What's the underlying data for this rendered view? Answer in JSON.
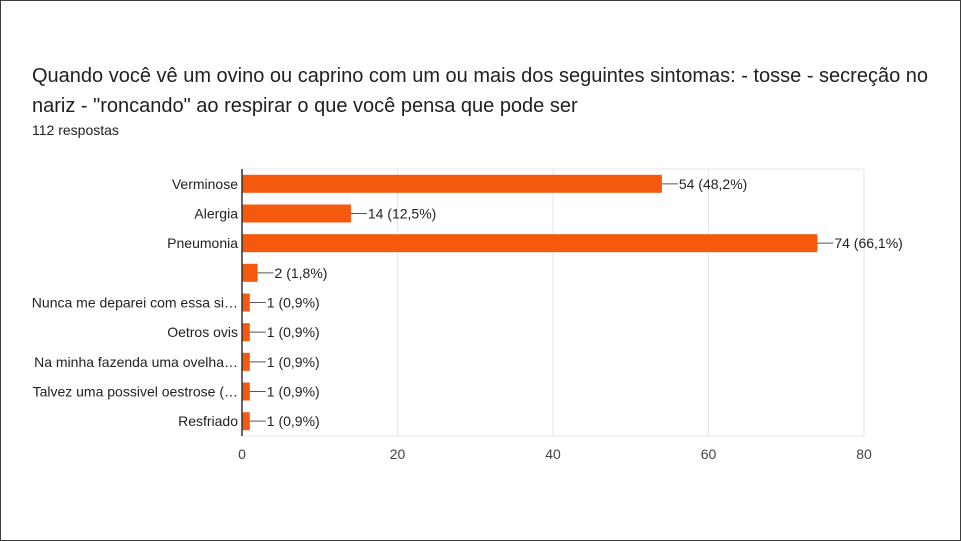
{
  "question": {
    "title": "Quando você vê um ovino ou caprino com um ou mais dos seguintes sintomas: - tosse - secreção no nariz - \"roncando\" ao respirar o que você pensa que pode ser",
    "responses": "112 respostas"
  },
  "colors": {
    "bar": "#f4590e",
    "grid": "#e6e6e6",
    "axis": "#333333",
    "leader": "#555555"
  },
  "chart_data": {
    "type": "bar",
    "orientation": "horizontal",
    "categories": [
      "Verminose",
      "Alergia",
      "Pneumonia",
      "",
      "Nunca me deparei com essa si…",
      "Oetros ovis",
      "Na minha fazenda uma ovelha…",
      "Talvez uma possivel oestrose (…",
      "Resfriado"
    ],
    "values": [
      54,
      14,
      74,
      2,
      1,
      1,
      1,
      1,
      1
    ],
    "data_labels": [
      "54 (48,2%)",
      "14 (12,5%)",
      "74 (66,1%)",
      "2 (1,8%)",
      "1 (0,9%)",
      "1 (0,9%)",
      "1 (0,9%)",
      "1 (0,9%)",
      "1 (0,9%)"
    ],
    "xlim": [
      0,
      80
    ],
    "xticks": [
      0,
      20,
      40,
      60,
      80
    ],
    "grid": true,
    "legend": "none"
  }
}
